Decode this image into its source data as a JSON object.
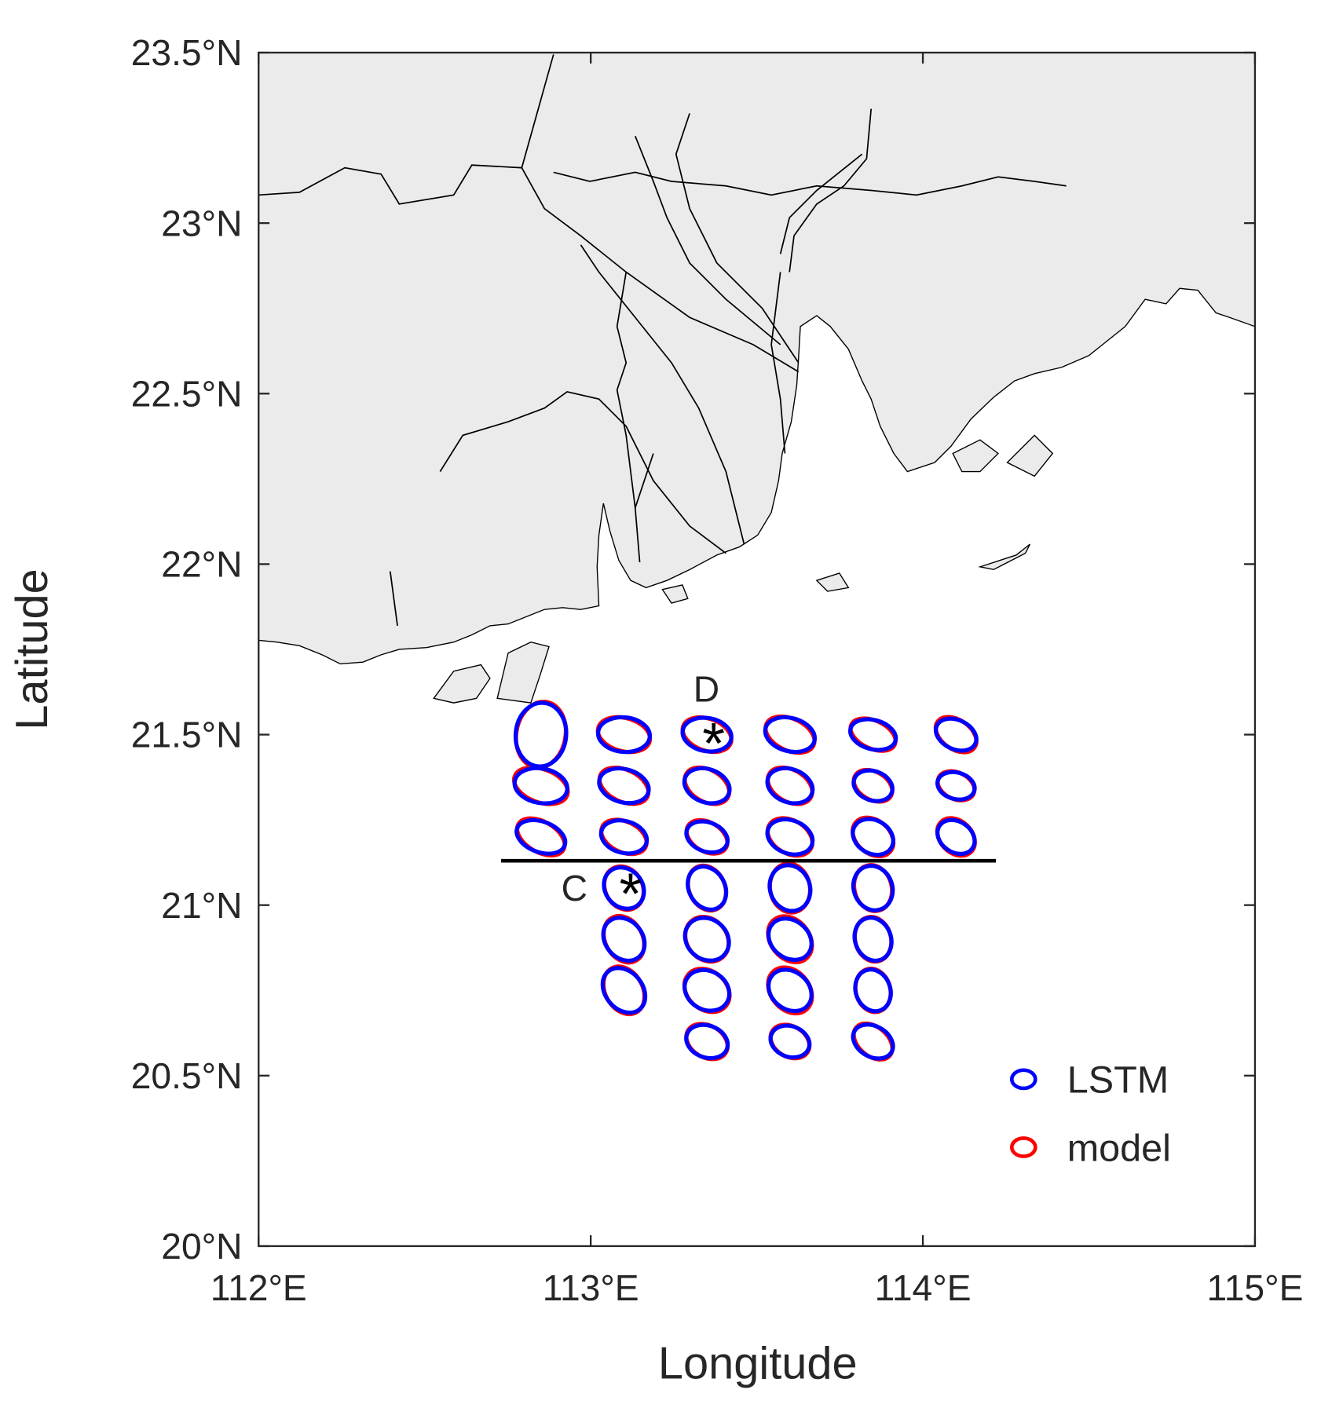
{
  "chart_data": {
    "type": "ellipse_map",
    "x_label": "Longitude",
    "y_label": "Latitude",
    "xlim": [
      112,
      115
    ],
    "ylim": [
      20,
      23.5
    ],
    "xticks": [
      {
        "value": 112,
        "label": "112°E"
      },
      {
        "value": 113,
        "label": "113°E"
      },
      {
        "value": 114,
        "label": "114°E"
      },
      {
        "value": 115,
        "label": "115°E"
      }
    ],
    "yticks": [
      {
        "value": 20,
        "label": "20°N"
      },
      {
        "value": 20.5,
        "label": "20.5°N"
      },
      {
        "value": 21,
        "label": "21°N"
      },
      {
        "value": 21.5,
        "label": "21.5°N"
      },
      {
        "value": 22,
        "label": "22°N"
      },
      {
        "value": 22.5,
        "label": "22.5°N"
      },
      {
        "value": 23,
        "label": "23°N"
      },
      {
        "value": 23.5,
        "label": "23.5°N"
      }
    ],
    "x": [
      112.85,
      113.1,
      113.35,
      113.6,
      113.85,
      114.1,
      112.85,
      113.1,
      113.35,
      113.6,
      113.85,
      114.1,
      112.85,
      113.1,
      113.35,
      113.6,
      113.85,
      114.1,
      113.1,
      113.35,
      113.6,
      113.85,
      113.1,
      113.35,
      113.6,
      113.85,
      113.1,
      113.35,
      113.6,
      113.85,
      113.35,
      113.6,
      113.85
    ],
    "y": [
      21.5,
      21.5,
      21.5,
      21.5,
      21.5,
      21.5,
      21.35,
      21.35,
      21.35,
      21.35,
      21.35,
      21.35,
      21.2,
      21.2,
      21.2,
      21.2,
      21.2,
      21.2,
      21.05,
      21.05,
      21.05,
      21.05,
      20.9,
      20.9,
      20.9,
      20.9,
      20.75,
      20.75,
      20.75,
      20.75,
      20.6,
      20.6,
      20.6
    ],
    "series": [
      {
        "name": "LSTM",
        "color": "#0000ff",
        "a": [
          0.096,
          0.078,
          0.074,
          0.076,
          0.07,
          0.064,
          0.08,
          0.076,
          0.07,
          0.07,
          0.06,
          0.057,
          0.076,
          0.07,
          0.064,
          0.07,
          0.064,
          0.06,
          0.066,
          0.068,
          0.07,
          0.068,
          0.07,
          0.07,
          0.07,
          0.066,
          0.074,
          0.07,
          0.07,
          0.064,
          0.064,
          0.06,
          0.064
        ],
        "b": [
          0.076,
          0.052,
          0.05,
          0.05,
          0.044,
          0.044,
          0.052,
          0.05,
          0.05,
          0.05,
          0.044,
          0.04,
          0.046,
          0.048,
          0.044,
          0.05,
          0.05,
          0.046,
          0.056,
          0.054,
          0.06,
          0.058,
          0.056,
          0.06,
          0.056,
          0.054,
          0.056,
          0.058,
          0.056,
          0.052,
          0.048,
          0.046,
          0.046
        ],
        "angle": [
          95,
          5,
          10,
          15,
          15,
          25,
          10,
          15,
          20,
          20,
          20,
          15,
          20,
          15,
          20,
          20,
          30,
          35,
          50,
          60,
          70,
          70,
          50,
          40,
          40,
          70,
          50,
          30,
          40,
          70,
          20,
          20,
          30
        ]
      },
      {
        "name": "model",
        "color": "#ff0000",
        "a": [
          0.1,
          0.08,
          0.076,
          0.078,
          0.072,
          0.068,
          0.084,
          0.078,
          0.072,
          0.072,
          0.062,
          0.058,
          0.078,
          0.072,
          0.066,
          0.072,
          0.068,
          0.064,
          0.068,
          0.07,
          0.074,
          0.07,
          0.074,
          0.072,
          0.076,
          0.068,
          0.076,
          0.074,
          0.076,
          0.066,
          0.066,
          0.062,
          0.066
        ],
        "b": [
          0.074,
          0.05,
          0.048,
          0.048,
          0.042,
          0.044,
          0.05,
          0.048,
          0.048,
          0.048,
          0.042,
          0.04,
          0.046,
          0.046,
          0.044,
          0.05,
          0.05,
          0.048,
          0.056,
          0.054,
          0.06,
          0.056,
          0.056,
          0.06,
          0.058,
          0.054,
          0.056,
          0.058,
          0.058,
          0.052,
          0.048,
          0.046,
          0.044
        ],
        "angle": [
          100,
          15,
          20,
          25,
          25,
          35,
          20,
          25,
          30,
          30,
          30,
          25,
          30,
          25,
          30,
          30,
          40,
          45,
          60,
          65,
          80,
          75,
          60,
          50,
          50,
          75,
          60,
          40,
          50,
          75,
          30,
          30,
          40
        ]
      }
    ],
    "annotations": [
      {
        "text": "C",
        "x": 113.12,
        "y": 21.05
      },
      {
        "text": "D",
        "x": 113.37,
        "y": 21.49
      }
    ],
    "section_line": {
      "x": [
        112.73,
        114.22
      ],
      "y": [
        21.13,
        21.13
      ]
    },
    "legend": "lower right"
  }
}
